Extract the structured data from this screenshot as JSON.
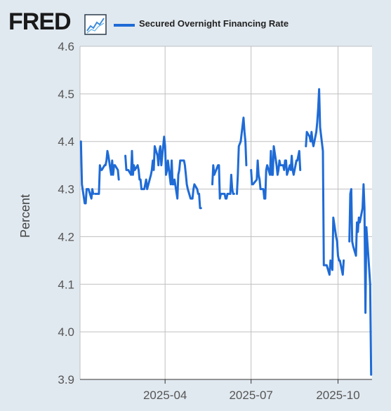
{
  "header": {
    "logo_text": "FRED",
    "logo_icon": "chart-trend-icon",
    "legend_label": "Secured Overnight Financing Rate"
  },
  "colors": {
    "series": "#1f6bd6",
    "plot_bg": "#ffffff",
    "page_bg": "#e1e9f0",
    "grid": "#bfbfbf"
  },
  "chart_data": {
    "type": "line",
    "title": "",
    "xlabel": "",
    "ylabel": "Percent",
    "ylim": [
      3.9,
      4.6
    ],
    "yticks": [
      3.9,
      4.0,
      4.1,
      4.2,
      4.3,
      4.4,
      4.5,
      4.6
    ],
    "ytick_labels": [
      "3.9",
      "4.0",
      "4.1",
      "4.2",
      "4.3",
      "4.4",
      "4.5",
      "4.6"
    ],
    "xlim": [
      "2025-01-01",
      "2025-11-06"
    ],
    "xticks": [
      "2025-04-01",
      "2025-07-01",
      "2025-10-01"
    ],
    "xtick_labels": [
      "2025-04",
      "2025-07",
      "2025-10"
    ],
    "grid": true,
    "series": [
      {
        "name": "Secured Overnight Financing Rate",
        "segments": [
          [
            [
              "2025-01-02",
              4.4
            ],
            [
              "2025-01-03",
              4.31
            ],
            [
              "2025-01-06",
              4.27
            ],
            [
              "2025-01-07",
              4.27
            ],
            [
              "2025-01-08",
              4.3
            ],
            [
              "2025-01-10",
              4.3
            ],
            [
              "2025-01-13",
              4.28
            ],
            [
              "2025-01-14",
              4.3
            ],
            [
              "2025-01-15",
              4.29
            ]
          ],
          [
            [
              "2025-01-17",
              4.29
            ],
            [
              "2025-01-21",
              4.29
            ],
            [
              "2025-01-22",
              4.35
            ],
            [
              "2025-01-23",
              4.34
            ],
            [
              "2025-01-24",
              4.34
            ],
            [
              "2025-01-27",
              4.35
            ],
            [
              "2025-01-28",
              4.35
            ],
            [
              "2025-01-29",
              4.36
            ],
            [
              "2025-01-30",
              4.38
            ],
            [
              "2025-01-31",
              4.37
            ],
            [
              "2025-02-03",
              4.33
            ],
            [
              "2025-02-04",
              4.36
            ],
            [
              "2025-02-05",
              4.33
            ],
            [
              "2025-02-06",
              4.35
            ],
            [
              "2025-02-07",
              4.35
            ],
            [
              "2025-02-10",
              4.34
            ],
            [
              "2025-02-11",
              4.32
            ]
          ],
          [
            [
              "2025-02-18",
              4.37
            ],
            [
              "2025-02-19",
              4.34
            ],
            [
              "2025-02-20",
              4.34
            ],
            [
              "2025-02-21",
              4.34
            ],
            [
              "2025-02-24",
              4.33
            ],
            [
              "2025-02-25",
              4.38
            ],
            [
              "2025-02-26",
              4.33
            ],
            [
              "2025-02-27",
              4.35
            ],
            [
              "2025-02-28",
              4.34
            ],
            [
              "2025-03-03",
              4.35
            ],
            [
              "2025-03-04",
              4.34
            ],
            [
              "2025-03-05",
              4.32
            ],
            [
              "2025-03-06",
              4.32
            ],
            [
              "2025-03-07",
              4.3
            ],
            [
              "2025-03-10",
              4.3
            ],
            [
              "2025-03-11",
              4.31
            ],
            [
              "2025-03-12",
              4.32
            ],
            [
              "2025-03-13",
              4.3
            ],
            [
              "2025-03-17",
              4.33
            ],
            [
              "2025-03-18",
              4.34
            ],
            [
              "2025-03-19",
              4.36
            ],
            [
              "2025-03-20",
              4.34
            ],
            [
              "2025-03-21",
              4.39
            ],
            [
              "2025-03-24",
              4.37
            ],
            [
              "2025-03-25",
              4.35
            ],
            [
              "2025-03-26",
              4.38
            ],
            [
              "2025-03-27",
              4.39
            ],
            [
              "2025-03-28",
              4.35
            ],
            [
              "2025-03-31",
              4.41
            ],
            [
              "2025-04-01",
              4.39
            ],
            [
              "2025-04-02",
              4.33
            ],
            [
              "2025-04-03",
              4.34
            ],
            [
              "2025-04-04",
              4.36
            ],
            [
              "2025-04-07",
              4.31
            ],
            [
              "2025-04-08",
              4.36
            ],
            [
              "2025-04-09",
              4.31
            ],
            [
              "2025-04-10",
              4.31
            ],
            [
              "2025-04-11",
              4.32
            ],
            [
              "2025-04-14",
              4.28
            ],
            [
              "2025-04-15",
              4.33
            ],
            [
              "2025-04-16",
              4.34
            ],
            [
              "2025-04-17",
              4.36
            ],
            [
              "2025-04-21",
              4.36
            ],
            [
              "2025-04-22",
              4.35
            ],
            [
              "2025-04-23",
              4.33
            ],
            [
              "2025-04-24",
              4.31
            ],
            [
              "2025-04-25",
              4.3
            ],
            [
              "2025-04-28",
              4.28
            ],
            [
              "2025-04-29",
              4.28
            ],
            [
              "2025-04-30",
              4.28
            ],
            [
              "2025-05-01",
              4.3
            ],
            [
              "2025-05-02",
              4.31
            ],
            [
              "2025-05-05",
              4.3
            ],
            [
              "2025-05-06",
              4.29
            ],
            [
              "2025-05-07",
              4.29
            ],
            [
              "2025-05-08",
              4.26
            ],
            [
              "2025-05-09",
              4.26
            ]
          ],
          [
            [
              "2025-05-21",
              4.31
            ],
            [
              "2025-05-22",
              4.35
            ],
            [
              "2025-05-23",
              4.33
            ],
            [
              "2025-05-27",
              4.35
            ],
            [
              "2025-05-28",
              4.35
            ],
            [
              "2025-05-29",
              4.28
            ],
            [
              "2025-05-30",
              4.29
            ],
            [
              "2025-06-02",
              4.29
            ],
            [
              "2025-06-03",
              4.29
            ],
            [
              "2025-06-04",
              4.28
            ],
            [
              "2025-06-05",
              4.28
            ],
            [
              "2025-06-06",
              4.29
            ],
            [
              "2025-06-09",
              4.29
            ],
            [
              "2025-06-10",
              4.33
            ],
            [
              "2025-06-11",
              4.3
            ],
            [
              "2025-06-12",
              4.29
            ],
            [
              "2025-06-13",
              4.29
            ]
          ],
          [
            [
              "2025-06-16",
              4.29
            ],
            [
              "2025-06-17",
              4.33
            ],
            [
              "2025-06-18",
              4.39
            ],
            [
              "2025-06-20",
              4.4
            ],
            [
              "2025-06-23",
              4.45
            ],
            [
              "2025-06-24",
              4.42
            ],
            [
              "2025-06-25",
              4.4
            ],
            [
              "2025-06-26",
              4.35
            ]
          ],
          [
            [
              "2025-07-01",
              4.34
            ],
            [
              "2025-07-02",
              4.31
            ],
            [
              "2025-07-03",
              4.31
            ],
            [
              "2025-07-07",
              4.32
            ],
            [
              "2025-07-08",
              4.36
            ],
            [
              "2025-07-09",
              4.33
            ],
            [
              "2025-07-10",
              4.32
            ],
            [
              "2025-07-11",
              4.3
            ],
            [
              "2025-07-14",
              4.3
            ],
            [
              "2025-07-15",
              4.28
            ],
            [
              "2025-07-16",
              4.28
            ],
            [
              "2025-07-17",
              4.34
            ],
            [
              "2025-07-18",
              4.35
            ],
            [
              "2025-07-21",
              4.33
            ],
            [
              "2025-07-22",
              4.38
            ],
            [
              "2025-07-23",
              4.33
            ],
            [
              "2025-07-24",
              4.33
            ],
            [
              "2025-07-25",
              4.39
            ],
            [
              "2025-07-28",
              4.35
            ],
            [
              "2025-07-29",
              4.33
            ],
            [
              "2025-07-30",
              4.34
            ],
            [
              "2025-07-31",
              4.36
            ],
            [
              "2025-08-01",
              4.35
            ],
            [
              "2025-08-04",
              4.35
            ],
            [
              "2025-08-05",
              4.34
            ],
            [
              "2025-08-06",
              4.36
            ],
            [
              "2025-08-07",
              4.36
            ],
            [
              "2025-08-08",
              4.33
            ],
            [
              "2025-08-11",
              4.35
            ],
            [
              "2025-08-12",
              4.34
            ],
            [
              "2025-08-13",
              4.37
            ],
            [
              "2025-08-14",
              4.34
            ],
            [
              "2025-08-15",
              4.33
            ],
            [
              "2025-08-18",
              4.36
            ],
            [
              "2025-08-19",
              4.36
            ],
            [
              "2025-08-20",
              4.37
            ],
            [
              "2025-08-21",
              4.38
            ],
            [
              "2025-08-22",
              4.34
            ]
          ],
          [
            [
              "2025-08-28",
              4.39
            ],
            [
              "2025-08-29",
              4.42
            ],
            [
              "2025-09-01",
              4.41
            ],
            [
              "2025-09-02",
              4.4
            ],
            [
              "2025-09-03",
              4.42
            ],
            [
              "2025-09-04",
              4.4
            ],
            [
              "2025-09-05",
              4.39
            ],
            [
              "2025-09-08",
              4.42
            ],
            [
              "2025-09-09",
              4.44
            ],
            [
              "2025-09-10",
              4.47
            ],
            [
              "2025-09-11",
              4.51
            ],
            [
              "2025-09-12",
              4.43
            ],
            [
              "2025-09-15",
              4.38
            ],
            [
              "2025-09-16",
              4.14
            ],
            [
              "2025-09-17",
              4.14
            ],
            [
              "2025-09-18",
              4.14
            ],
            [
              "2025-09-19",
              4.14
            ],
            [
              "2025-09-22",
              4.12
            ],
            [
              "2025-09-23",
              4.15
            ],
            [
              "2025-09-24",
              4.14
            ],
            [
              "2025-09-25",
              4.13
            ],
            [
              "2025-09-26",
              4.24
            ],
            [
              "2025-09-29",
              4.2
            ],
            [
              "2025-09-30",
              4.19
            ],
            [
              "2025-10-01",
              4.16
            ],
            [
              "2025-10-02",
              4.15
            ],
            [
              "2025-10-03",
              4.15
            ],
            [
              "2025-10-06",
              4.12
            ],
            [
              "2025-10-07",
              4.15
            ]
          ],
          [
            [
              "2025-10-13",
              4.19
            ],
            [
              "2025-10-14",
              4.29
            ],
            [
              "2025-10-15",
              4.3
            ],
            [
              "2025-10-16",
              4.19
            ],
            [
              "2025-10-17",
              4.18
            ],
            [
              "2025-10-20",
              4.16
            ],
            [
              "2025-10-21",
              4.23
            ],
            [
              "2025-10-22",
              4.21
            ],
            [
              "2025-10-23",
              4.24
            ],
            [
              "2025-10-24",
              4.23
            ],
            [
              "2025-10-27",
              4.26
            ],
            [
              "2025-10-28",
              4.31
            ],
            [
              "2025-10-29",
              4.26
            ],
            [
              "2025-10-30",
              4.04
            ],
            [
              "2025-10-31",
              4.22
            ],
            [
              "2025-11-03",
              4.13
            ],
            [
              "2025-11-04",
              4.1
            ],
            [
              "2025-11-05",
              3.91
            ]
          ]
        ]
      }
    ]
  }
}
